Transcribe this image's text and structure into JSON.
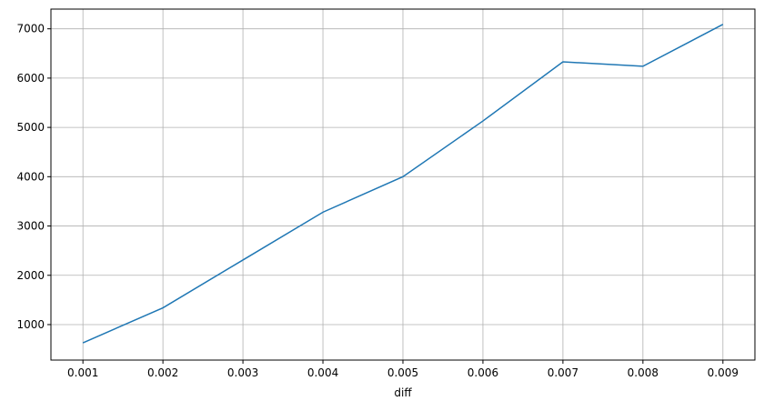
{
  "chart_data": {
    "type": "line",
    "title": "",
    "xlabel": "diff",
    "ylabel": "",
    "grid": true,
    "xlim": [
      0.0006,
      0.0094
    ],
    "ylim": [
      280,
      7400
    ],
    "xticks": [
      "0.001",
      "0.002",
      "0.003",
      "0.004",
      "0.005",
      "0.006",
      "0.007",
      "0.008",
      "0.009"
    ],
    "yticks": [
      "1000",
      "2000",
      "3000",
      "4000",
      "5000",
      "6000",
      "7000"
    ],
    "x": [
      0.001,
      0.002,
      0.003,
      0.004,
      0.005,
      0.006,
      0.007,
      0.008,
      0.009
    ],
    "series": [
      {
        "values": [
          630,
          1340,
          2310,
          3280,
          4000,
          5130,
          6330,
          6240,
          7090
        ],
        "color": "#1f77b4"
      }
    ]
  }
}
